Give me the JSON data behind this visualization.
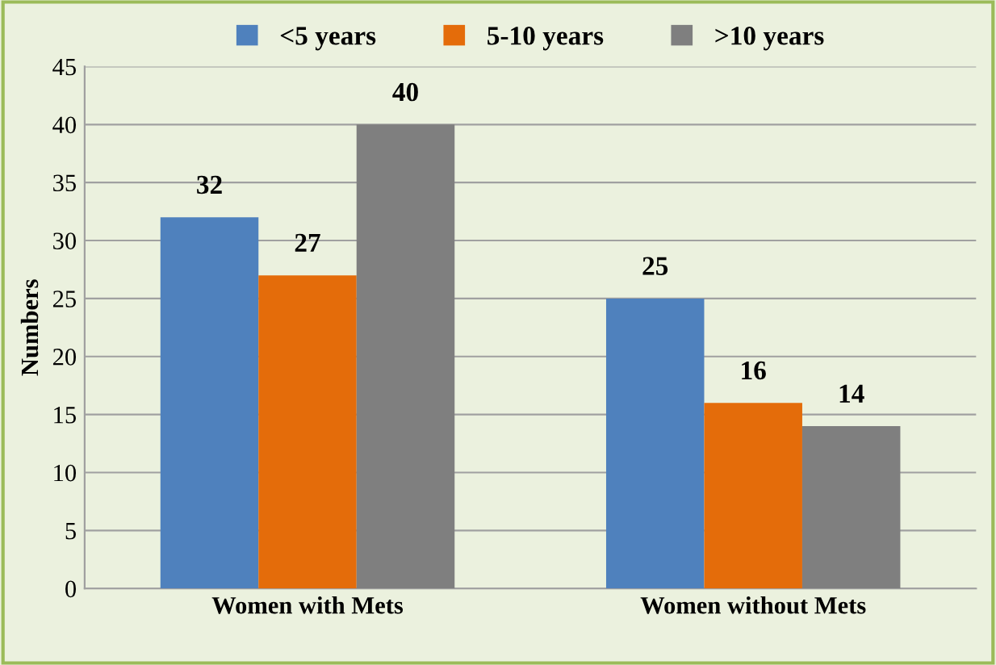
{
  "chart_data": {
    "type": "bar",
    "ylabel": "Numbers",
    "categories": [
      "Women with Mets",
      "Women without Mets"
    ],
    "series": [
      {
        "name": "<5 years",
        "color": "#4f81bd",
        "values": [
          32,
          25
        ]
      },
      {
        "name": "5-10 years",
        "color": "#e46c0a",
        "values": [
          27,
          16
        ]
      },
      {
        "name": ">10 years",
        "color": "#7f7f7f",
        "values": [
          40,
          14
        ]
      }
    ],
    "ylim": [
      0,
      45
    ],
    "yticks": [
      0,
      5,
      10,
      15,
      20,
      25,
      30,
      35,
      40,
      45
    ],
    "grid": "y",
    "legend": "top",
    "data_labels": true
  }
}
